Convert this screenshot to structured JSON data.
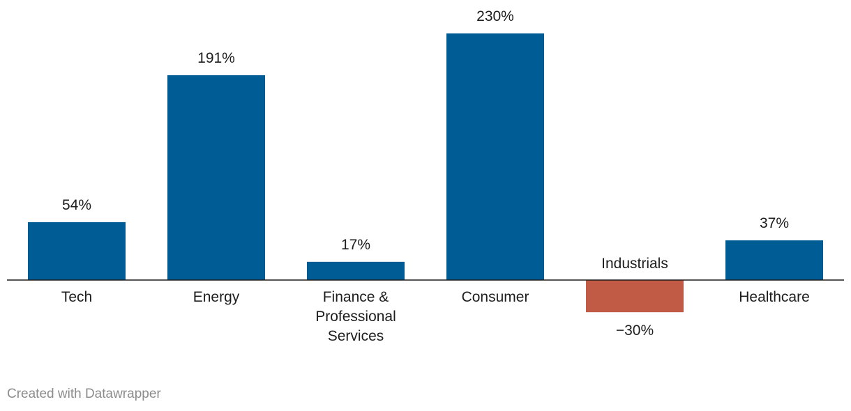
{
  "chart_data": {
    "type": "bar",
    "categories": [
      "Tech",
      "Energy",
      "Finance & Professional Services",
      "Consumer",
      "Industrials",
      "Healthcare"
    ],
    "category_lines": [
      [
        "Tech"
      ],
      [
        "Energy"
      ],
      [
        "Finance &",
        "Professional",
        "Services"
      ],
      [
        "Consumer"
      ],
      [
        "Industrials"
      ],
      [
        "Healthcare"
      ]
    ],
    "values": [
      54,
      191,
      17,
      230,
      -30,
      37
    ],
    "value_labels": [
      "54%",
      "191%",
      "17%",
      "230%",
      "−30%",
      "37%"
    ],
    "unit": "%",
    "colors": {
      "positive": "#005c95",
      "negative": "#c15b45",
      "baseline": "#1d1d1d",
      "label": "#1d1d1d"
    },
    "title": "",
    "xlabel": "",
    "ylabel": "",
    "grid": false,
    "legend": "none"
  },
  "footer": {
    "credit": "Created with Datawrapper"
  }
}
